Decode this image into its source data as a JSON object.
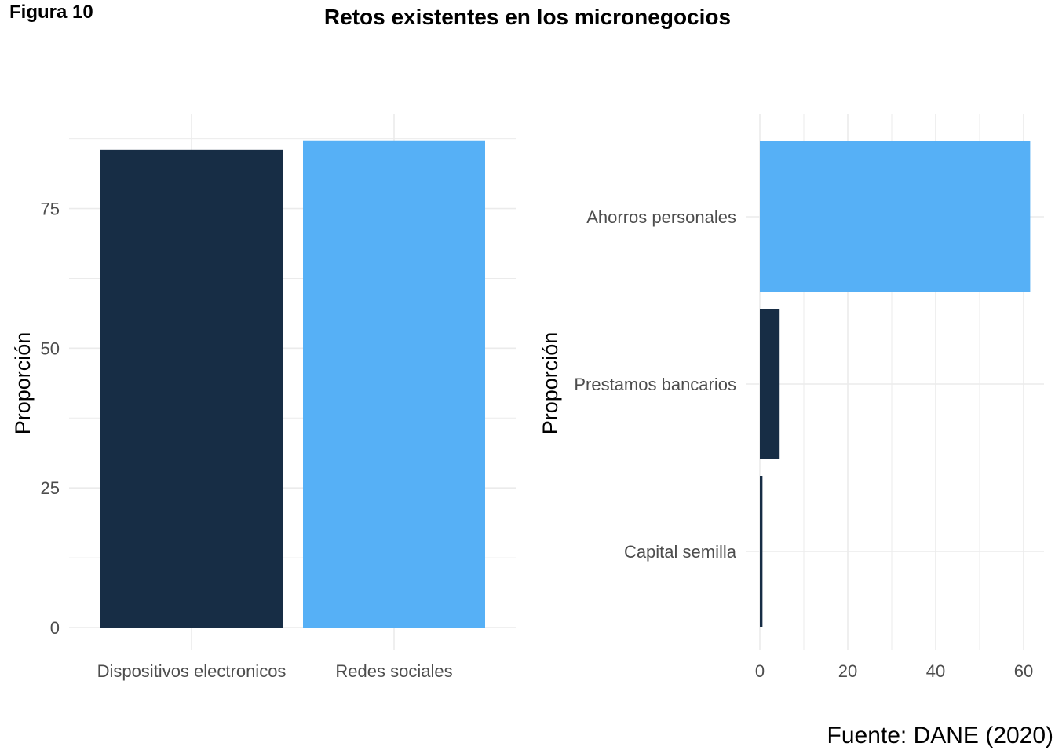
{
  "figure_label": "Figura 10",
  "title": "Retos existentes en los micronegocios",
  "source": "Fuente: DANE (2020)",
  "colors": {
    "dark": "#172d45",
    "light": "#56b0f6",
    "grid": "#ebebeb",
    "tick_text": "#4d4d4d"
  },
  "chart_data": [
    {
      "type": "bar",
      "orientation": "vertical",
      "categories": [
        "Dispositivos electronicos",
        "Redes sociales"
      ],
      "values": [
        85.5,
        87.2
      ],
      "bar_colors": [
        "#172d45",
        "#56b0f6"
      ],
      "ylabel": "Proporción",
      "xlabel": "",
      "ylim": [
        0,
        90
      ],
      "yticks": [
        0,
        25,
        50,
        75
      ],
      "grid": true
    },
    {
      "type": "bar",
      "orientation": "horizontal",
      "categories": [
        "Capital semilla",
        "Prestamos bancarios",
        "Ahorros personales"
      ],
      "values": [
        0.6,
        4.5,
        61.5
      ],
      "bar_colors": [
        "#172d45",
        "#172d45",
        "#56b0f6"
      ],
      "ylabel": "Proporción",
      "xlabel": "",
      "xlim": [
        0,
        64
      ],
      "xticks": [
        0,
        20,
        40,
        60
      ],
      "grid": true
    }
  ]
}
